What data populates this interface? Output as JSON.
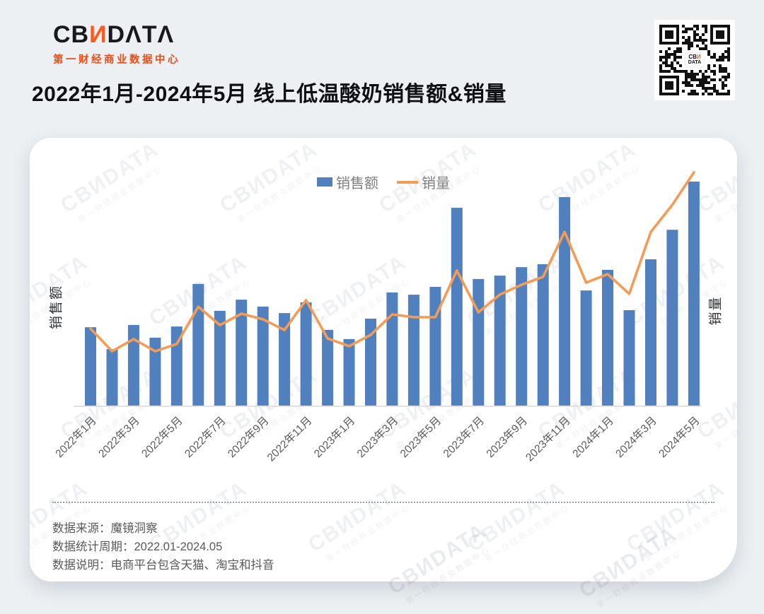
{
  "header": {
    "logo_prefix": "CB",
    "logo_n": "И",
    "logo_suffix": "DΛTΛ",
    "logo_subtitle": "第一财经商业数据中心",
    "qr_center_line1": "CBИ",
    "qr_center_line2": "DATA"
  },
  "title": "2022年1月-2024年5月 线上低温酸奶销售额&销量",
  "chart_data": {
    "type": "bar+line combo",
    "title": "2022年1月-2024年5月 线上低温酸奶销售额&销量",
    "categories": [
      "2022年1月",
      "2022年2月",
      "2022年3月",
      "2022年4月",
      "2022年5月",
      "2022年6月",
      "2022年7月",
      "2022年8月",
      "2022年9月",
      "2022年10月",
      "2022年11月",
      "2022年12月",
      "2023年1月",
      "2023年2月",
      "2023年3月",
      "2023年4月",
      "2023年5月",
      "2023年6月",
      "2023年7月",
      "2023年8月",
      "2023年9月",
      "2023年10月",
      "2023年11月",
      "2023年12月",
      "2024年1月",
      "2024年2月",
      "2024年3月",
      "2024年4月",
      "2024年5月"
    ],
    "x_tick_labels_shown": [
      "2022年1月",
      "2022年3月",
      "2022年5月",
      "2022年7月",
      "2022年9月",
      "2022年11月",
      "2023年1月",
      "2023年3月",
      "2023年5月",
      "2023年7月",
      "2023年9月",
      "2023年11月",
      "2024年1月",
      "2024年3月",
      "2024年5月"
    ],
    "series": [
      {
        "name": "销售额",
        "type": "bar",
        "axis": "left",
        "color": "#5081BE",
        "values": [
          35.0,
          25.2,
          36.0,
          30.3,
          35.3,
          54.3,
          42.3,
          47.3,
          44.2,
          41.3,
          46.1,
          33.8,
          29.7,
          38.8,
          50.5,
          49.5,
          53.0,
          88.3,
          56.5,
          58.0,
          61.8,
          63.1,
          93.1,
          51.4,
          60.6,
          42.6,
          65.3,
          78.5,
          100.0
        ]
      },
      {
        "name": "销量",
        "type": "line",
        "axis": "right",
        "color": "#F49C55",
        "values": [
          33.0,
          23.3,
          28.5,
          23.3,
          26.4,
          42.4,
          34.5,
          39.4,
          37.0,
          32.4,
          45.2,
          28.8,
          25.5,
          30.3,
          39.1,
          37.9,
          37.9,
          57.9,
          40.0,
          47.6,
          51.8,
          55.2,
          74.5,
          52.7,
          56.4,
          47.9,
          74.5,
          86.1,
          100.0
        ]
      }
    ],
    "ylabel_left": "销售额",
    "ylabel_right": "销量",
    "value_note": "no numeric axis shown in source; values are relative indices scaled so series max = 100",
    "legend_position": "top-center",
    "grid": false
  },
  "watermark": {
    "line1": "CBИDATA",
    "line2": "第一财经商业数据中心"
  },
  "footer": {
    "source": "数据来源：魔镜洞察",
    "period": "数据统计周期：2022.01-2024.05",
    "note": "数据说明：电商平台包含天猫、淘宝和抖音"
  }
}
